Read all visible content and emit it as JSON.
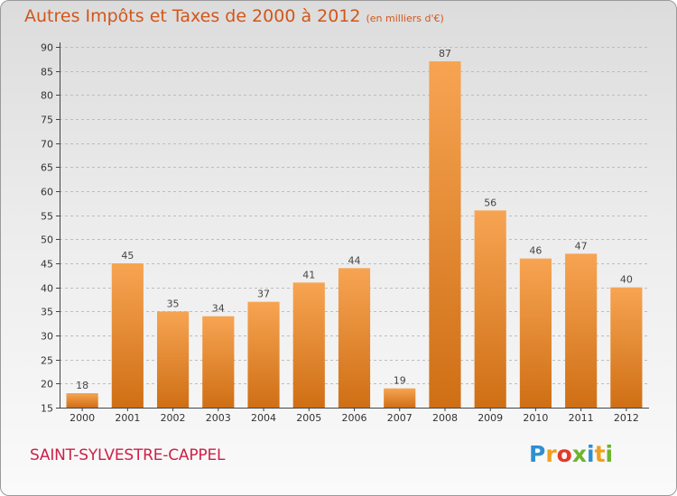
{
  "title": "Autres Impôts et Taxes de 2000 à 2012",
  "title_unit": "(en milliers d'€)",
  "town": "SAINT-SYLVESTRE-CAPPEL",
  "brand": {
    "letters": [
      "P",
      "r",
      "o",
      "x",
      "i",
      "t",
      "i"
    ],
    "colors": [
      "#2f8fd0",
      "#f0a020",
      "#e23a2a",
      "#6bb52e",
      "#2f8fd0",
      "#f0a020",
      "#6bb52e"
    ]
  },
  "colors": {
    "bar_top": "#f7a452",
    "bar_bottom": "#cf6f15",
    "title": "#d2561a",
    "town": "#cf1f47"
  },
  "chart_data": {
    "type": "bar",
    "categories": [
      "2000",
      "2001",
      "2002",
      "2003",
      "2004",
      "2005",
      "2006",
      "2007",
      "2008",
      "2009",
      "2010",
      "2011",
      "2012"
    ],
    "values": [
      18,
      45,
      35,
      34,
      37,
      41,
      44,
      19,
      87,
      56,
      46,
      47,
      40
    ],
    "data_labels": [
      "18",
      "45",
      "35",
      "34",
      "37",
      "41",
      "44",
      "19",
      "87",
      "56",
      "46",
      "47",
      "40"
    ],
    "title": "Autres Impôts et Taxes de 2000 à 2012",
    "xlabel": "",
    "ylabel": "",
    "ylim": [
      15,
      90
    ],
    "yticks": [
      15,
      20,
      25,
      30,
      35,
      40,
      45,
      50,
      55,
      60,
      65,
      70,
      75,
      80,
      85,
      90
    ],
    "ytick_labels": [
      "15",
      "20",
      "25",
      "30",
      "35",
      "40",
      "45",
      "50",
      "55",
      "60",
      "65",
      "70",
      "75",
      "80",
      "85",
      "90"
    ],
    "grid": true
  }
}
